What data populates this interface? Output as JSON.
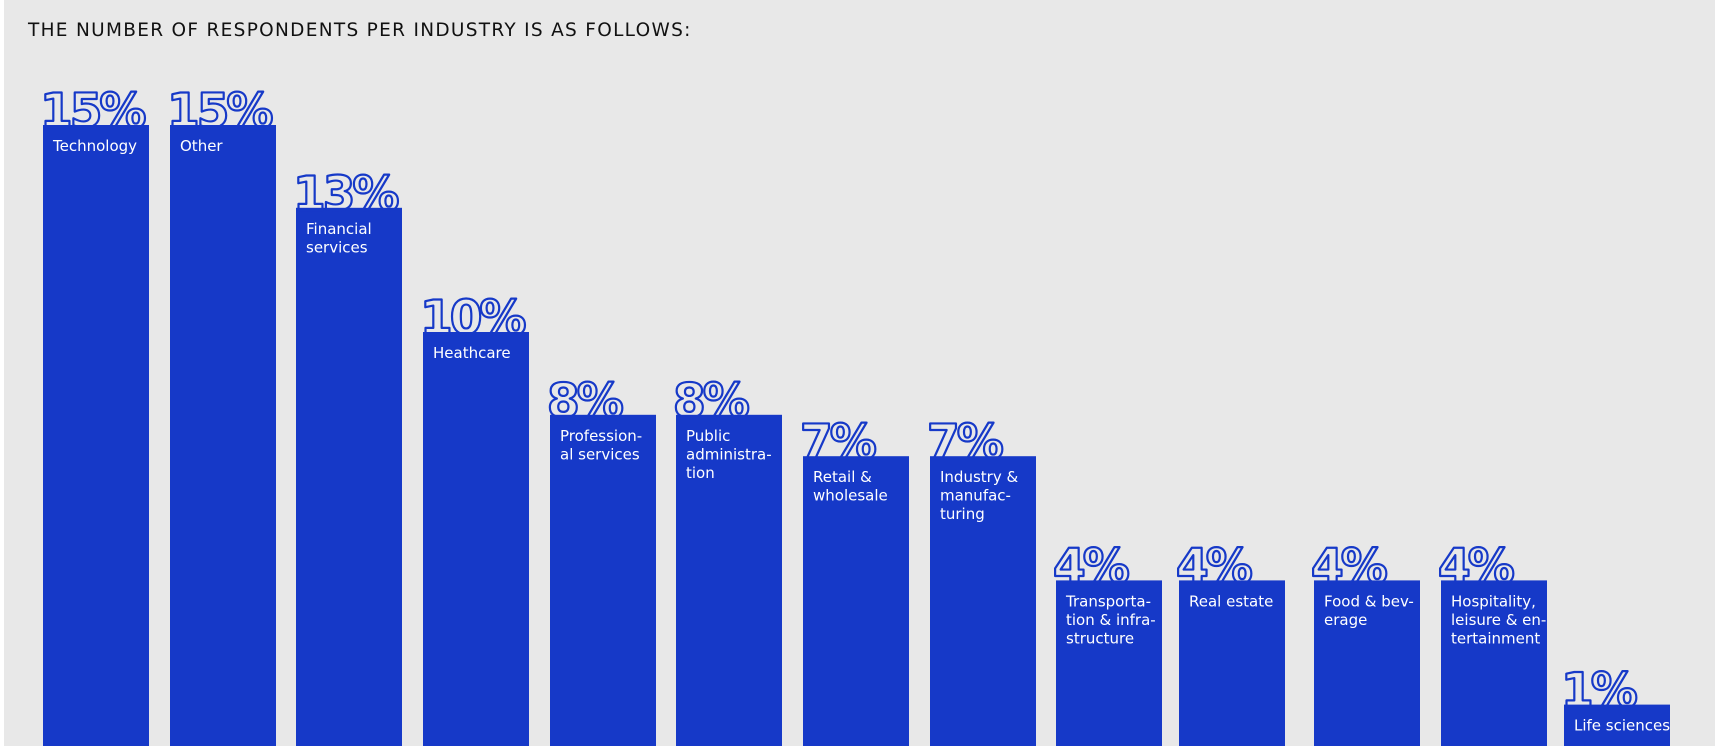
{
  "colors": {
    "bar": "#1639c8",
    "background": "#e8e8e8",
    "title": "#111111",
    "bar_text": "#ffffff"
  },
  "chart_data": {
    "type": "bar",
    "title": "THE NUMBER OF RESPONDENTS PER INDUSTRY IS AS FOLLOWS:",
    "xlabel": "",
    "ylabel": "",
    "ylim": [
      0,
      15
    ],
    "grid": false,
    "legend": "none",
    "categories": [
      "Technology",
      "Other",
      "Financial services",
      "Heathcare",
      "Professional services",
      "Public administration",
      "Retail & wholesale",
      "Industry & manufacturing",
      "Transportation & infrastructure",
      "Real estate",
      "Food & beverage",
      "Hospitality, leisure & entertainment",
      "Life sciences"
    ],
    "category_label_lines": [
      [
        "Technology"
      ],
      [
        "Other"
      ],
      [
        "Financial",
        "services"
      ],
      [
        "Heathcare"
      ],
      [
        "Profession-",
        "al services"
      ],
      [
        "Public",
        "administra-",
        "tion"
      ],
      [
        "Retail &",
        "wholesale"
      ],
      [
        "Industry &",
        "manufac-",
        "turing"
      ],
      [
        "Transporta-",
        "tion & infra-",
        "structure"
      ],
      [
        "Real estate"
      ],
      [
        "Food & bev-",
        "erage"
      ],
      [
        "Hospitality,",
        "leisure & en-",
        "tertainment"
      ],
      [
        "Life sciences"
      ]
    ],
    "values": [
      15,
      15,
      13,
      10,
      8,
      8,
      7,
      7,
      4,
      4,
      4,
      4,
      1
    ],
    "value_labels": [
      "15%",
      "15%",
      "13%",
      "10%",
      "8%",
      "8%",
      "7%",
      "7%",
      "4%",
      "4%",
      "4%",
      "4%",
      "1%"
    ]
  }
}
